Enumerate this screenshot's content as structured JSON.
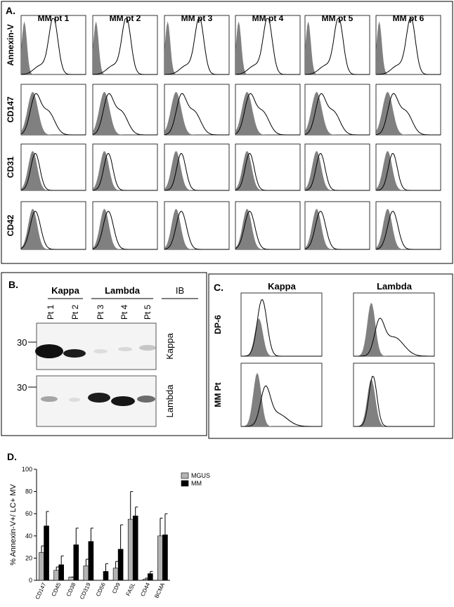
{
  "panel_a": {
    "label": "A.",
    "columns": [
      "MM pt 1",
      "MM pt 2",
      "MM pt 3",
      "MM pt 4",
      "MM pt 5",
      "MM pt 6"
    ],
    "rows": [
      "Annexin-V",
      "CD147",
      "CD31",
      "CD42"
    ]
  },
  "panel_b": {
    "label": "B.",
    "groups": [
      "Kappa",
      "Lambda",
      "IB"
    ],
    "lanes": [
      "Pt 1",
      "Pt 2",
      "Pt 3",
      "Pt 4",
      "Pt 5"
    ],
    "markers": [
      "30",
      "30"
    ],
    "blots": [
      "Kappa",
      "Lambda"
    ]
  },
  "panel_c": {
    "label": "C.",
    "columns": [
      "Kappa",
      "Lambda"
    ],
    "rows": [
      "DP-6",
      "MM Pt"
    ]
  },
  "chart_data": {
    "type": "bar",
    "label": "D.",
    "y_label": "% Annexin-V+/ LC+ MV",
    "categories": [
      "CD147",
      "CD45",
      "CD38",
      "CD319",
      "CD56",
      "CD9",
      "FASL",
      "CD44",
      "BCMA"
    ],
    "series": [
      {
        "name": "MGUS",
        "color": "#b3b3b3",
        "values": [
          25,
          9,
          3,
          13,
          0,
          11,
          55,
          1,
          40
        ],
        "errors": [
          6,
          3,
          0,
          6,
          0,
          6,
          25,
          1,
          16
        ]
      },
      {
        "name": "MM",
        "color": "#000000",
        "values": [
          49,
          14,
          32,
          35,
          8,
          28,
          58,
          6,
          41
        ],
        "errors": [
          13,
          8,
          15,
          12,
          7,
          22,
          8,
          2,
          19
        ]
      }
    ],
    "ylim": [
      0,
      100
    ],
    "yticks": [
      0,
      20,
      40,
      60,
      80,
      100
    ],
    "legend": "upper right"
  }
}
